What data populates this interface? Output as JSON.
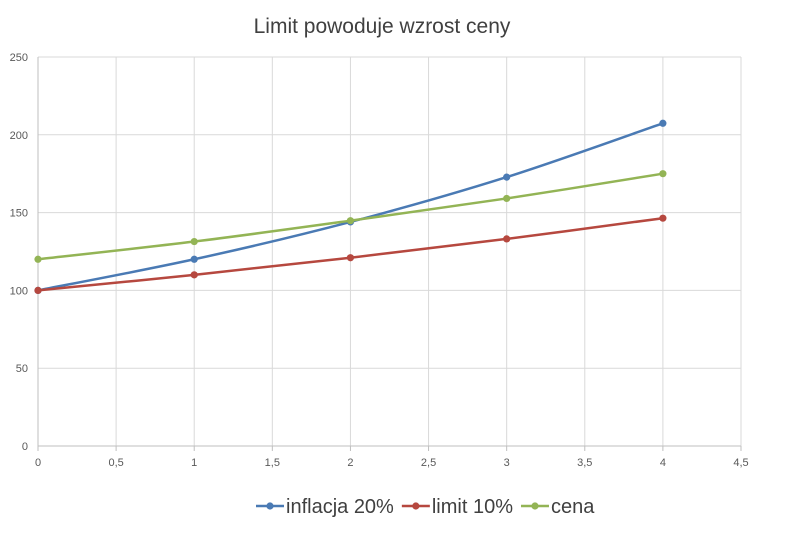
{
  "chart_data": {
    "type": "line",
    "title": "Limit powoduje wzrost ceny",
    "xlim": [
      0,
      4.5
    ],
    "ylim": [
      0,
      250
    ],
    "x_ticks": [
      "0",
      "0,5",
      "1",
      "1,5",
      "2",
      "2,5",
      "3",
      "3,5",
      "4",
      "4,5"
    ],
    "y_ticks": [
      "0",
      "50",
      "100",
      "150",
      "200",
      "250"
    ],
    "grid": true,
    "legend_position": "bottom",
    "series": [
      {
        "name": "inflacja 20%",
        "color": "#4a7ab4",
        "x": [
          0,
          1,
          2,
          3,
          4
        ],
        "values": [
          100,
          120,
          144,
          172.8,
          207.4
        ]
      },
      {
        "name": "limit 10%",
        "color": "#b6483f",
        "x": [
          0,
          1,
          2,
          3,
          4
        ],
        "values": [
          100,
          110,
          121,
          133.1,
          146.4
        ]
      },
      {
        "name": "cena",
        "color": "#93b455",
        "x": [
          0,
          1,
          2,
          3,
          4
        ],
        "values": [
          120,
          131.4,
          144.8,
          159.1,
          175
        ]
      }
    ]
  }
}
